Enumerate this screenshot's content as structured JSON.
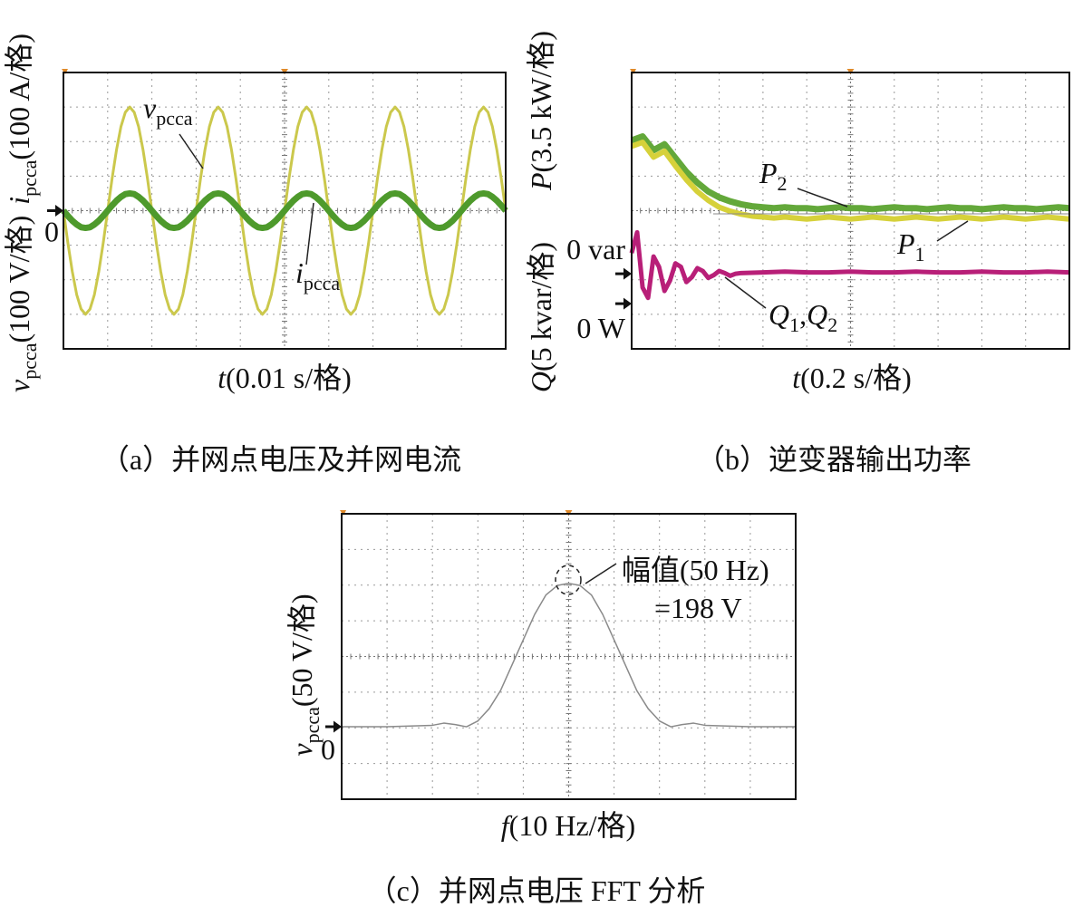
{
  "chart_data": [
    {
      "type": "line",
      "caption": "（a）并网点电压及并网电流",
      "xlabel": [
        "t",
        "(0.01 s/格)"
      ],
      "ylabel": [
        "v",
        {
          "sub": "pcca"
        },
        "(100 V/格)"
      ],
      "y2label": [
        "i",
        {
          "sub": "pcca"
        },
        "(100 A/格)"
      ],
      "xlim": [
        0,
        0.1
      ],
      "ylim": [
        -400,
        400
      ],
      "y2lim": [
        -400,
        400
      ],
      "yticks": [
        0
      ],
      "grid": true,
      "x": [
        0,
        0.001,
        0.002,
        0.003,
        0.004,
        0.005,
        0.006,
        0.007,
        0.008,
        0.009,
        0.01,
        0.011,
        0.012,
        0.013,
        0.014,
        0.015,
        0.016,
        0.017,
        0.018,
        0.019,
        0.02,
        0.021,
        0.022,
        0.023,
        0.024,
        0.025,
        0.026,
        0.027,
        0.028,
        0.029,
        0.03,
        0.031,
        0.032,
        0.033,
        0.034,
        0.035,
        0.036,
        0.037,
        0.038,
        0.039,
        0.04,
        0.041,
        0.042,
        0.043,
        0.044,
        0.045,
        0.046,
        0.047,
        0.048,
        0.049,
        0.05,
        0.051,
        0.052,
        0.053,
        0.054,
        0.055,
        0.056,
        0.057,
        0.058,
        0.059,
        0.06,
        0.061,
        0.062,
        0.063,
        0.064,
        0.065,
        0.066,
        0.067,
        0.068,
        0.069,
        0.07,
        0.071,
        0.072,
        0.073,
        0.074,
        0.075,
        0.076,
        0.077,
        0.078,
        0.079,
        0.08,
        0.081,
        0.082,
        0.083,
        0.084,
        0.085,
        0.086,
        0.087,
        0.088,
        0.089,
        0.09,
        0.091,
        0.092,
        0.093,
        0.094,
        0.095,
        0.096,
        0.097,
        0.098,
        0.099,
        0.1
      ],
      "series": [
        {
          "name": [
            "v",
            {
              "sub": "pcca"
            }
          ],
          "color": "#cbc84c",
          "width": 3,
          "values": [
            0,
            -93,
            -176,
            -243,
            -285,
            -300,
            -285,
            -243,
            -176,
            -93,
            0,
            93,
            176,
            243,
            285,
            300,
            285,
            243,
            176,
            93,
            0,
            -93,
            -176,
            -243,
            -285,
            -300,
            -285,
            -243,
            -176,
            -93,
            0,
            93,
            176,
            243,
            285,
            300,
            285,
            243,
            176,
            93,
            0,
            -93,
            -176,
            -243,
            -285,
            -300,
            -285,
            -243,
            -176,
            -93,
            0,
            93,
            176,
            243,
            285,
            300,
            285,
            243,
            176,
            93,
            0,
            -93,
            -176,
            -243,
            -285,
            -300,
            -285,
            -243,
            -176,
            -93,
            0,
            93,
            176,
            243,
            285,
            300,
            285,
            243,
            176,
            93,
            0,
            -93,
            -176,
            -243,
            -285,
            -300,
            -285,
            -243,
            -176,
            -93,
            0,
            93,
            176,
            243,
            285,
            300,
            285,
            243,
            176,
            93,
            0
          ]
        },
        {
          "name": [
            "i",
            {
              "sub": "pcca"
            }
          ],
          "color": "#4e9a2c",
          "width": 7,
          "axis": "y2",
          "values": [
            0,
            -15,
            -29,
            -40,
            -48,
            -50,
            -48,
            -40,
            -29,
            -15,
            0,
            15,
            29,
            40,
            48,
            50,
            48,
            40,
            29,
            15,
            0,
            -15,
            -29,
            -40,
            -48,
            -50,
            -48,
            -40,
            -29,
            -15,
            0,
            15,
            29,
            40,
            48,
            50,
            48,
            40,
            29,
            15,
            0,
            -15,
            -29,
            -40,
            -48,
            -50,
            -48,
            -40,
            -29,
            -15,
            0,
            15,
            29,
            40,
            48,
            50,
            48,
            40,
            29,
            15,
            0,
            -15,
            -29,
            -40,
            -48,
            -50,
            -48,
            -40,
            -29,
            -15,
            0,
            15,
            29,
            40,
            48,
            50,
            48,
            40,
            29,
            15,
            0,
            -15,
            -29,
            -40,
            -48,
            -50,
            -48,
            -40,
            -29,
            -15,
            0,
            15,
            29,
            40,
            48,
            50,
            48,
            40,
            29,
            15,
            0
          ]
        }
      ]
    },
    {
      "type": "line",
      "caption": "（b）逆变器输出功率",
      "xlabel": [
        "t",
        "(0.2 s/格)"
      ],
      "ylabel": [
        "P",
        "(3.5 kW/格)"
      ],
      "y2label": [
        "Q",
        "(5 kvar/格)"
      ],
      "xlim": [
        0,
        2
      ],
      "ylim": [
        -4.6,
        23.5
      ],
      "y2lim": [
        -10.9,
        29.2
      ],
      "yticks": [
        {
          "value": 0,
          "label": "0 W"
        }
      ],
      "y2ticks": [
        {
          "value": 0,
          "label": "0 var"
        }
      ],
      "grid": true,
      "series": [
        {
          "name": [
            "P",
            {
              "sub": "2"
            }
          ],
          "color": "#63a83a",
          "width": 7,
          "x": [
            0,
            0.05,
            0.1,
            0.15,
            0.2,
            0.25,
            0.3,
            0.35,
            0.4,
            0.45,
            0.5,
            0.55,
            0.6,
            0.65,
            0.7,
            0.75,
            0.8,
            0.85,
            0.9,
            0.95,
            1,
            1.05,
            1.1,
            1.15,
            1.2,
            1.25,
            1.3,
            1.35,
            1.4,
            1.45,
            1.5,
            1.55,
            1.6,
            1.65,
            1.7,
            1.75,
            1.8,
            1.85,
            1.9,
            1.95,
            2
          ],
          "values": [
            16.6,
            17,
            15.6,
            16.2,
            14.8,
            13.4,
            12.3,
            11.4,
            10.8,
            10.4,
            10.1,
            9.9,
            9.8,
            9.7,
            9.8,
            9.7,
            9.7,
            9.6,
            9.7,
            9.8,
            9.7,
            9.7,
            9.6,
            9.7,
            9.8,
            9.7,
            9.7,
            9.6,
            9.7,
            9.8,
            9.7,
            9.7,
            9.6,
            9.7,
            9.8,
            9.7,
            9.7,
            9.6,
            9.7,
            9.8,
            9.7
          ]
        },
        {
          "name": [
            "P",
            {
              "sub": "1"
            }
          ],
          "color": "#d6d13a",
          "width": 6,
          "x": [
            0,
            0.05,
            0.1,
            0.15,
            0.2,
            0.25,
            0.3,
            0.35,
            0.4,
            0.45,
            0.5,
            0.55,
            0.6,
            0.65,
            0.7,
            0.75,
            0.8,
            0.85,
            0.9,
            0.95,
            1,
            1.05,
            1.1,
            1.15,
            1.2,
            1.25,
            1.3,
            1.35,
            1.4,
            1.45,
            1.5,
            1.55,
            1.6,
            1.65,
            1.7,
            1.75,
            1.8,
            1.85,
            1.9,
            1.95,
            2
          ],
          "values": [
            16,
            16.4,
            14.9,
            15.5,
            14,
            12.6,
            11.4,
            10.5,
            9.8,
            9.4,
            9.1,
            8.9,
            8.8,
            8.7,
            8.8,
            8.7,
            8.6,
            8.7,
            8.8,
            8.7,
            8.6,
            8.7,
            8.8,
            8.7,
            8.6,
            8.7,
            8.8,
            8.7,
            8.6,
            8.7,
            8.8,
            8.7,
            8.6,
            8.7,
            8.8,
            8.7,
            8.6,
            8.7,
            8.8,
            8.7,
            8.6
          ]
        },
        {
          "name": [
            "Q",
            {
              "sub": "1"
            },
            ",",
            "Q",
            {
              "sub": "2"
            }
          ],
          "color": "#b81f78",
          "width": 5,
          "axis": "y2",
          "x": [
            0,
            0.025,
            0.05,
            0.075,
            0.1,
            0.125,
            0.15,
            0.175,
            0.2,
            0.225,
            0.25,
            0.275,
            0.3,
            0.325,
            0.35,
            0.375,
            0.4,
            0.425,
            0.45,
            0.475,
            0.5,
            0.6,
            0.7,
            0.8,
            0.9,
            1,
            1.1,
            1.2,
            1.3,
            1.4,
            1.5,
            1.6,
            1.7,
            1.8,
            1.9,
            2
          ],
          "values": [
            3,
            6,
            -2,
            -3.5,
            2.5,
            1,
            -2.5,
            -1,
            1.5,
            1,
            -1.2,
            -0.5,
            0.8,
            0.4,
            -0.6,
            -0.2,
            0.4,
            0.1,
            -0.3,
            0,
            0.1,
            0.2,
            0.3,
            0.2,
            0.2,
            0.3,
            0.2,
            0.2,
            0.3,
            0.2,
            0.2,
            0.3,
            0.2,
            0.2,
            0.3,
            0.2
          ]
        }
      ]
    },
    {
      "type": "line",
      "caption": "（c）并网点电压 FFT 分析",
      "xlabel": [
        "f",
        "(10 Hz/格)"
      ],
      "ylabel": [
        "v",
        {
          "sub": "pcca"
        },
        "(50 V/格)"
      ],
      "xlim": [
        0,
        100
      ],
      "ylim": [
        -100,
        294
      ],
      "yticks": [
        0
      ],
      "grid": true,
      "annotations": [
        "幅值(50 Hz)",
        "=198 V"
      ],
      "x": [
        0,
        10,
        20,
        22.5,
        25,
        27.5,
        30,
        32.5,
        35,
        37.5,
        40,
        42.5,
        45,
        47.5,
        50,
        52.5,
        55,
        57.5,
        60,
        62.5,
        65,
        67.5,
        70,
        72.5,
        75,
        77.5,
        80,
        90,
        100
      ],
      "series": [
        {
          "color": "#8a8a8a",
          "width": 1.5,
          "values": [
            0,
            0,
            2,
            5,
            3,
            0,
            8,
            25,
            50,
            85,
            120,
            155,
            182,
            195,
            198,
            195,
            182,
            155,
            120,
            85,
            50,
            25,
            8,
            0,
            3,
            5,
            2,
            0,
            0
          ]
        }
      ]
    }
  ]
}
